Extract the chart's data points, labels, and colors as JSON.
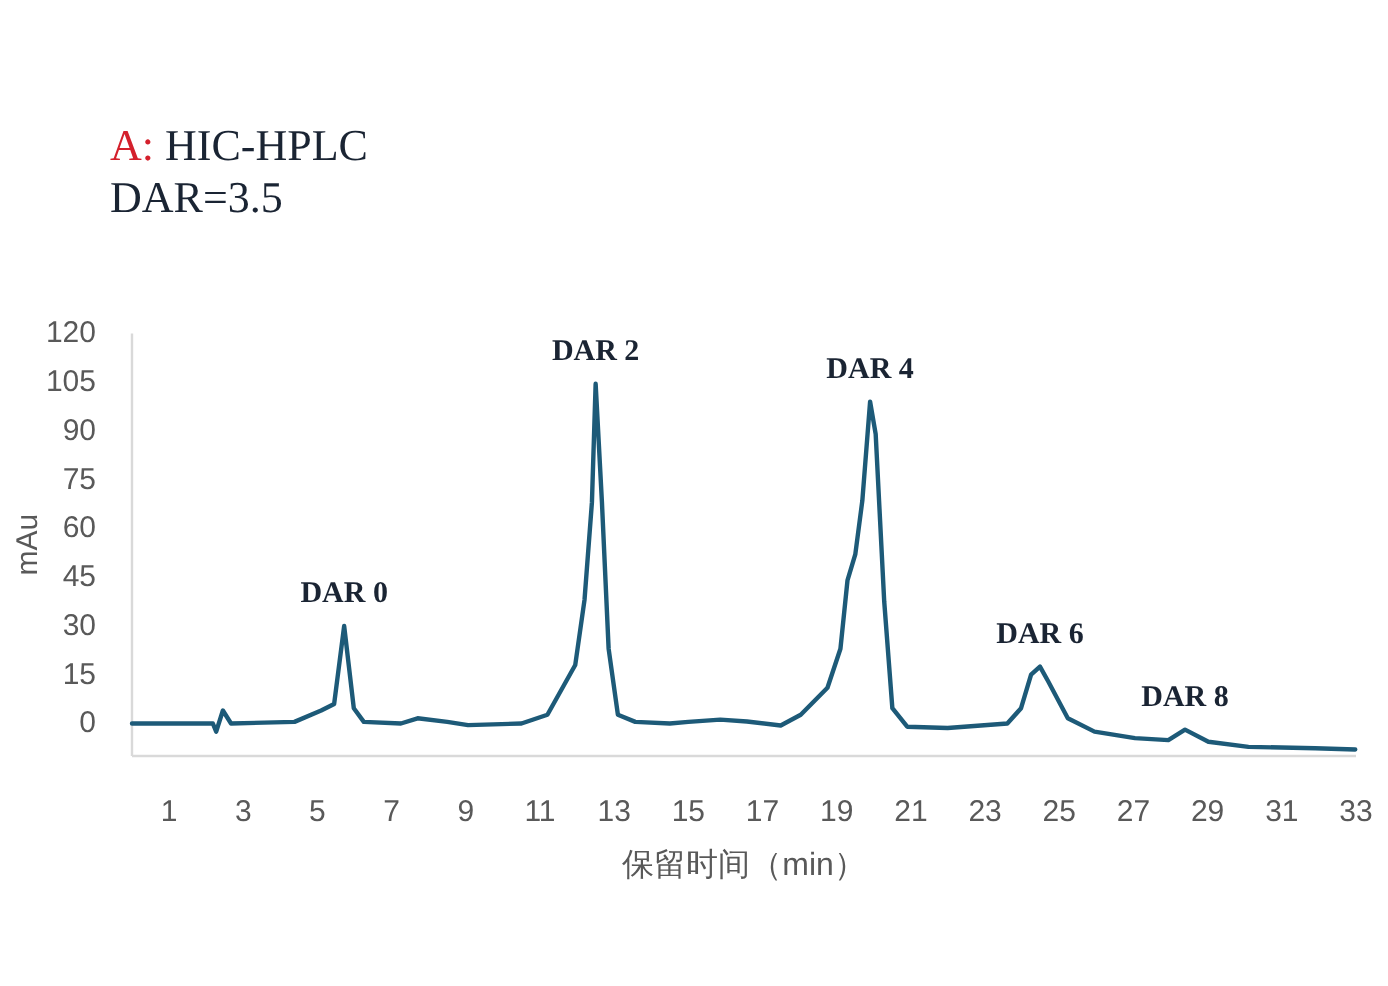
{
  "chart_data": {
    "type": "line",
    "title": "A: HIC-HPLC",
    "subtitle": "DAR=3.5",
    "xlabel": "保留时间（min）",
    "ylabel": "mAu",
    "xlim": [
      0,
      33
    ],
    "ylim": [
      -10,
      120
    ],
    "xticks": [
      1,
      3,
      5,
      7,
      9,
      11,
      13,
      15,
      17,
      19,
      21,
      23,
      25,
      27,
      29,
      31,
      33
    ],
    "yticks": [
      0,
      15,
      30,
      45,
      60,
      75,
      90,
      105,
      120
    ],
    "grid": false,
    "series": [
      {
        "color": "#1d5a78",
        "x": [
          0,
          2.18,
          2.27,
          2.45,
          2.67,
          4.38,
          5.1,
          5.45,
          5.72,
          5.98,
          6.25,
          7.25,
          7.7,
          8.5,
          9.06,
          10.5,
          11.2,
          11.95,
          12.2,
          12.4,
          12.5,
          12.67,
          12.85,
          13.1,
          13.57,
          14.5,
          15.0,
          15.86,
          16.58,
          17.49,
          18.03,
          18.75,
          19.1,
          19.29,
          19.5,
          19.69,
          19.9,
          20.05,
          20.28,
          20.5,
          20.9,
          21.99,
          23.6,
          23.97,
          24.24,
          24.48,
          24.7,
          25.23,
          25.95,
          27.04,
          27.94,
          28.39,
          29.02,
          30.1,
          31.9,
          32.98
        ],
        "values": [
          0,
          0,
          -2.5,
          4,
          0,
          0.5,
          4,
          6,
          30,
          4.7,
          0.5,
          0,
          1.6,
          0.5,
          -0.5,
          0,
          2.7,
          18,
          38,
          68,
          104.5,
          68,
          23,
          2.7,
          0.5,
          0,
          0.5,
          1.2,
          0.6,
          -0.6,
          2.7,
          11,
          23,
          44,
          52,
          68.5,
          99,
          89,
          37.6,
          4.7,
          -1,
          -1.4,
          0,
          4.7,
          15,
          17.5,
          13,
          1.6,
          -2.5,
          -4.5,
          -5.1,
          -1.9,
          -5.6,
          -7.2,
          -7.6,
          -8
        ]
      }
    ],
    "annotations": [
      {
        "text": "DAR 0",
        "x": 5.72,
        "y": 30
      },
      {
        "text": "DAR 2",
        "x": 12.5,
        "y": 104.5
      },
      {
        "text": "DAR 4",
        "x": 19.9,
        "y": 99
      },
      {
        "text": "DAR 6",
        "x": 24.48,
        "y": 17.5
      },
      {
        "text": "DAR 8",
        "x": 28.39,
        "y": -1.9
      }
    ]
  }
}
